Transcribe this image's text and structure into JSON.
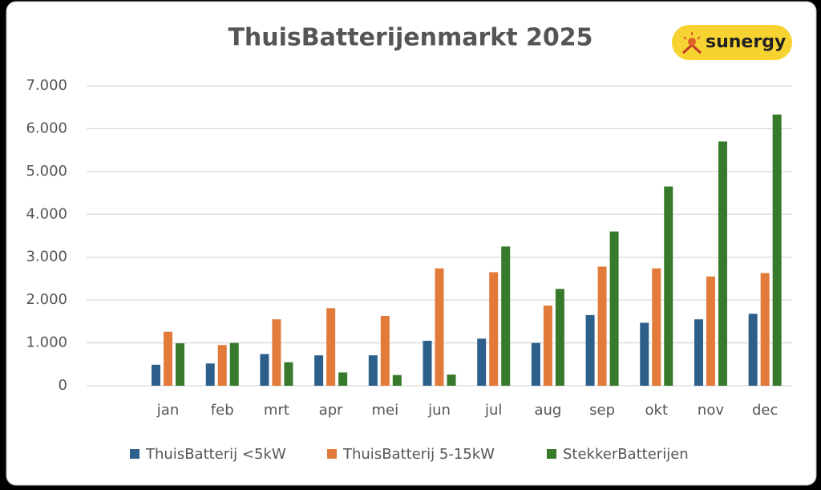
{
  "chart_data": {
    "type": "bar",
    "title": "ThuisBatterijenmarkt 2025",
    "logo": "sunergy",
    "categories": [
      null,
      "jan",
      "feb",
      "mrt",
      "apr",
      "mei",
      "jun",
      "jul",
      "aug",
      "sep",
      "okt",
      "nov",
      "dec"
    ],
    "series": [
      {
        "name": "ThuisBatterij <5kW",
        "color": "#2d5f8b",
        "values": [
          null,
          490,
          520,
          740,
          710,
          710,
          1050,
          1100,
          1000,
          1650,
          1470,
          1550,
          1680
        ]
      },
      {
        "name": "ThuisBatterij 5-15kW",
        "color": "#e27b3a",
        "values": [
          null,
          1260,
          950,
          1550,
          1810,
          1630,
          2740,
          2650,
          1870,
          2780,
          2740,
          2550,
          2630
        ]
      },
      {
        "name": "StekkerBatterijen",
        "color": "#377a2b",
        "values": [
          null,
          990,
          1000,
          550,
          310,
          250,
          260,
          3250,
          2260,
          3600,
          4650,
          5700,
          6330
        ]
      }
    ],
    "ylim": [
      0,
      7000
    ],
    "yticks": [
      0,
      {
        "value": 1000,
        "label": "1.000"
      },
      {
        "value": 2000,
        "label": "2.000"
      },
      {
        "value": 3000,
        "label": "3.000"
      },
      {
        "value": 4000,
        "label": "4.000"
      },
      {
        "value": 5000,
        "label": "5.000"
      },
      {
        "value": 6000,
        "label": "6.000"
      },
      {
        "value": 7000,
        "label": "7.000"
      }
    ],
    "grid": true,
    "legend": "bottom"
  }
}
